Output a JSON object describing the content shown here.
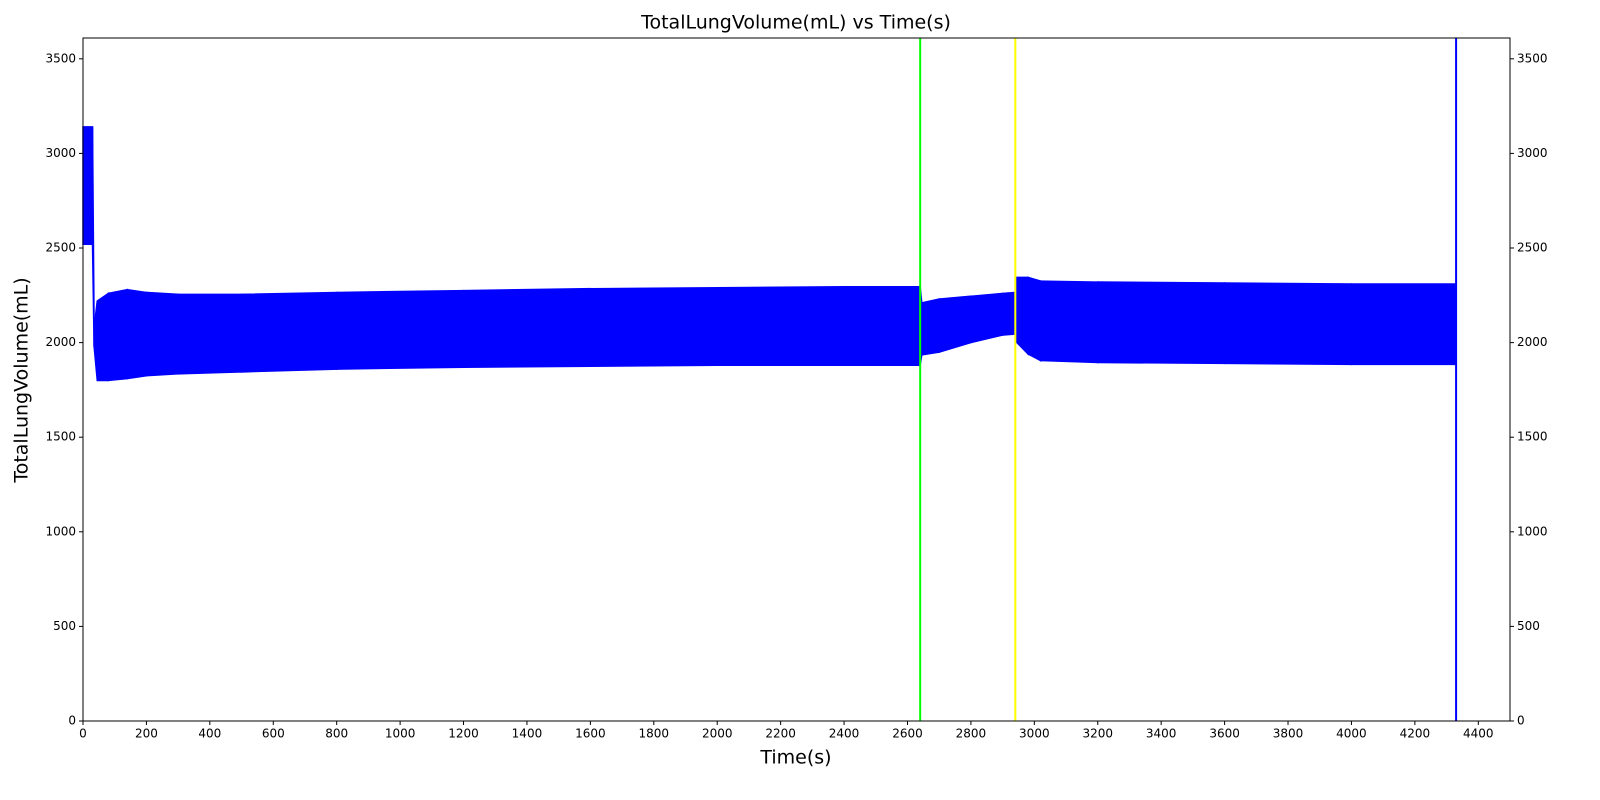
{
  "chart_data": {
    "type": "band",
    "title": "TotalLungVolume(mL) vs Time(s)",
    "x_label": "Time(s)",
    "y_label": "TotalLungVolume(mL)",
    "x": [
      0,
      30,
      35,
      45,
      80,
      140,
      200,
      300,
      500,
      800,
      1200,
      1600,
      2000,
      2400,
      2640,
      2645,
      2700,
      2800,
      2900,
      2940,
      2945,
      2980,
      3020,
      3200,
      3600,
      4000,
      4330
    ],
    "series": [
      {
        "color": "#0000ff",
        "lower": [
          2520,
          2520,
          1980,
          1800,
          1800,
          1810,
          1825,
          1835,
          1845,
          1860,
          1870,
          1875,
          1880,
          1880,
          1880,
          1935,
          1950,
          2000,
          2040,
          2045,
          2000,
          1940,
          1905,
          1895,
          1890,
          1885,
          1885
        ],
        "upper": [
          3140,
          3140,
          2080,
          2220,
          2260,
          2280,
          2265,
          2255,
          2255,
          2265,
          2275,
          2285,
          2290,
          2295,
          2295,
          2210,
          2230,
          2245,
          2260,
          2265,
          2345,
          2345,
          2325,
          2320,
          2315,
          2310,
          2310
        ]
      }
    ],
    "vlines": [
      {
        "x": 2640,
        "color": "#00ff00"
      },
      {
        "x": 2940,
        "color": "#ffff00"
      },
      {
        "x": 4330,
        "color": "#0000ff"
      }
    ],
    "xlim": [
      0,
      4500
    ],
    "xticks": [
      0,
      200,
      400,
      600,
      800,
      1000,
      1200,
      1400,
      1600,
      1800,
      2000,
      2200,
      2400,
      2600,
      2800,
      3000,
      3200,
      3400,
      3600,
      3800,
      4000,
      4200,
      4400
    ],
    "ylim": [
      0,
      3610
    ],
    "yticks": [
      0,
      500,
      1000,
      1500,
      2000,
      2500,
      3000,
      3500
    ],
    "y2lim": [
      0,
      3610
    ],
    "y2ticks": [
      0,
      500,
      1000,
      1500,
      2000,
      2500,
      3000,
      3500
    ]
  }
}
